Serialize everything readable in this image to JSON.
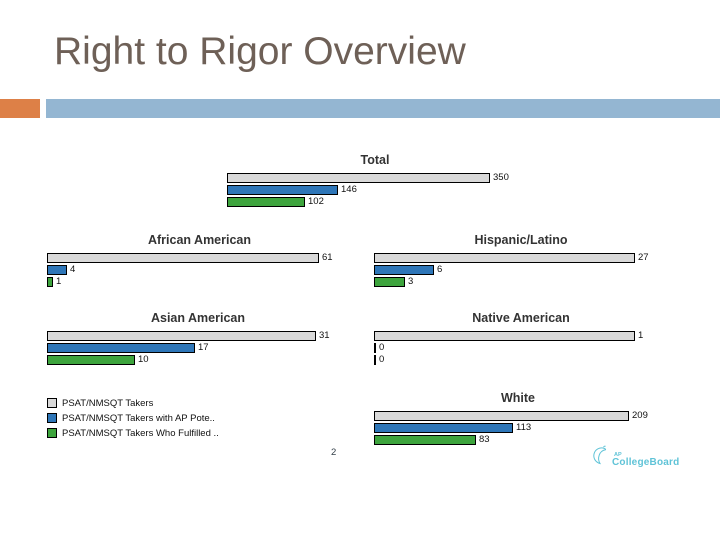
{
  "slide": {
    "title": "Right to Rigor Overview",
    "page_number": "2",
    "accent_orange": "#DD8047",
    "accent_blue": "#94B6D2"
  },
  "legend": {
    "items": [
      {
        "label": "PSAT/NMSQT Takers",
        "color": "#D9D9D9"
      },
      {
        "label": "PSAT/NMSQT Takers with AP Pote..",
        "color": "#2E76B8"
      },
      {
        "label": "PSAT/NMSQT Takers Who Fulfilled ..",
        "color": "#3DA43D"
      }
    ]
  },
  "logo": {
    "brand": "CollegeBoard",
    "superscript": "AP",
    "color": "#5FC3D7"
  },
  "chart_data": {
    "type": "bar",
    "orientation": "horizontal",
    "value_labels_shown": true,
    "series_labels": [
      "PSAT/NMSQT Takers",
      "PSAT/NMSQT Takers with AP Pote..",
      "PSAT/NMSQT Takers Who Fulfilled .."
    ],
    "series_colors": [
      "#D9D9D9",
      "#2E76B8",
      "#3DA43D"
    ],
    "charts": [
      {
        "title": "Total",
        "values": [
          350,
          146,
          102
        ]
      },
      {
        "title": "African American",
        "values": [
          61,
          4,
          1
        ]
      },
      {
        "title": "Hispanic/Latino",
        "values": [
          27,
          6,
          3
        ]
      },
      {
        "title": "Asian American",
        "values": [
          31,
          17,
          10
        ]
      },
      {
        "title": "Native American",
        "values": [
          1,
          0,
          0
        ]
      },
      {
        "title": "White",
        "values": [
          209,
          113,
          83
        ]
      }
    ]
  }
}
